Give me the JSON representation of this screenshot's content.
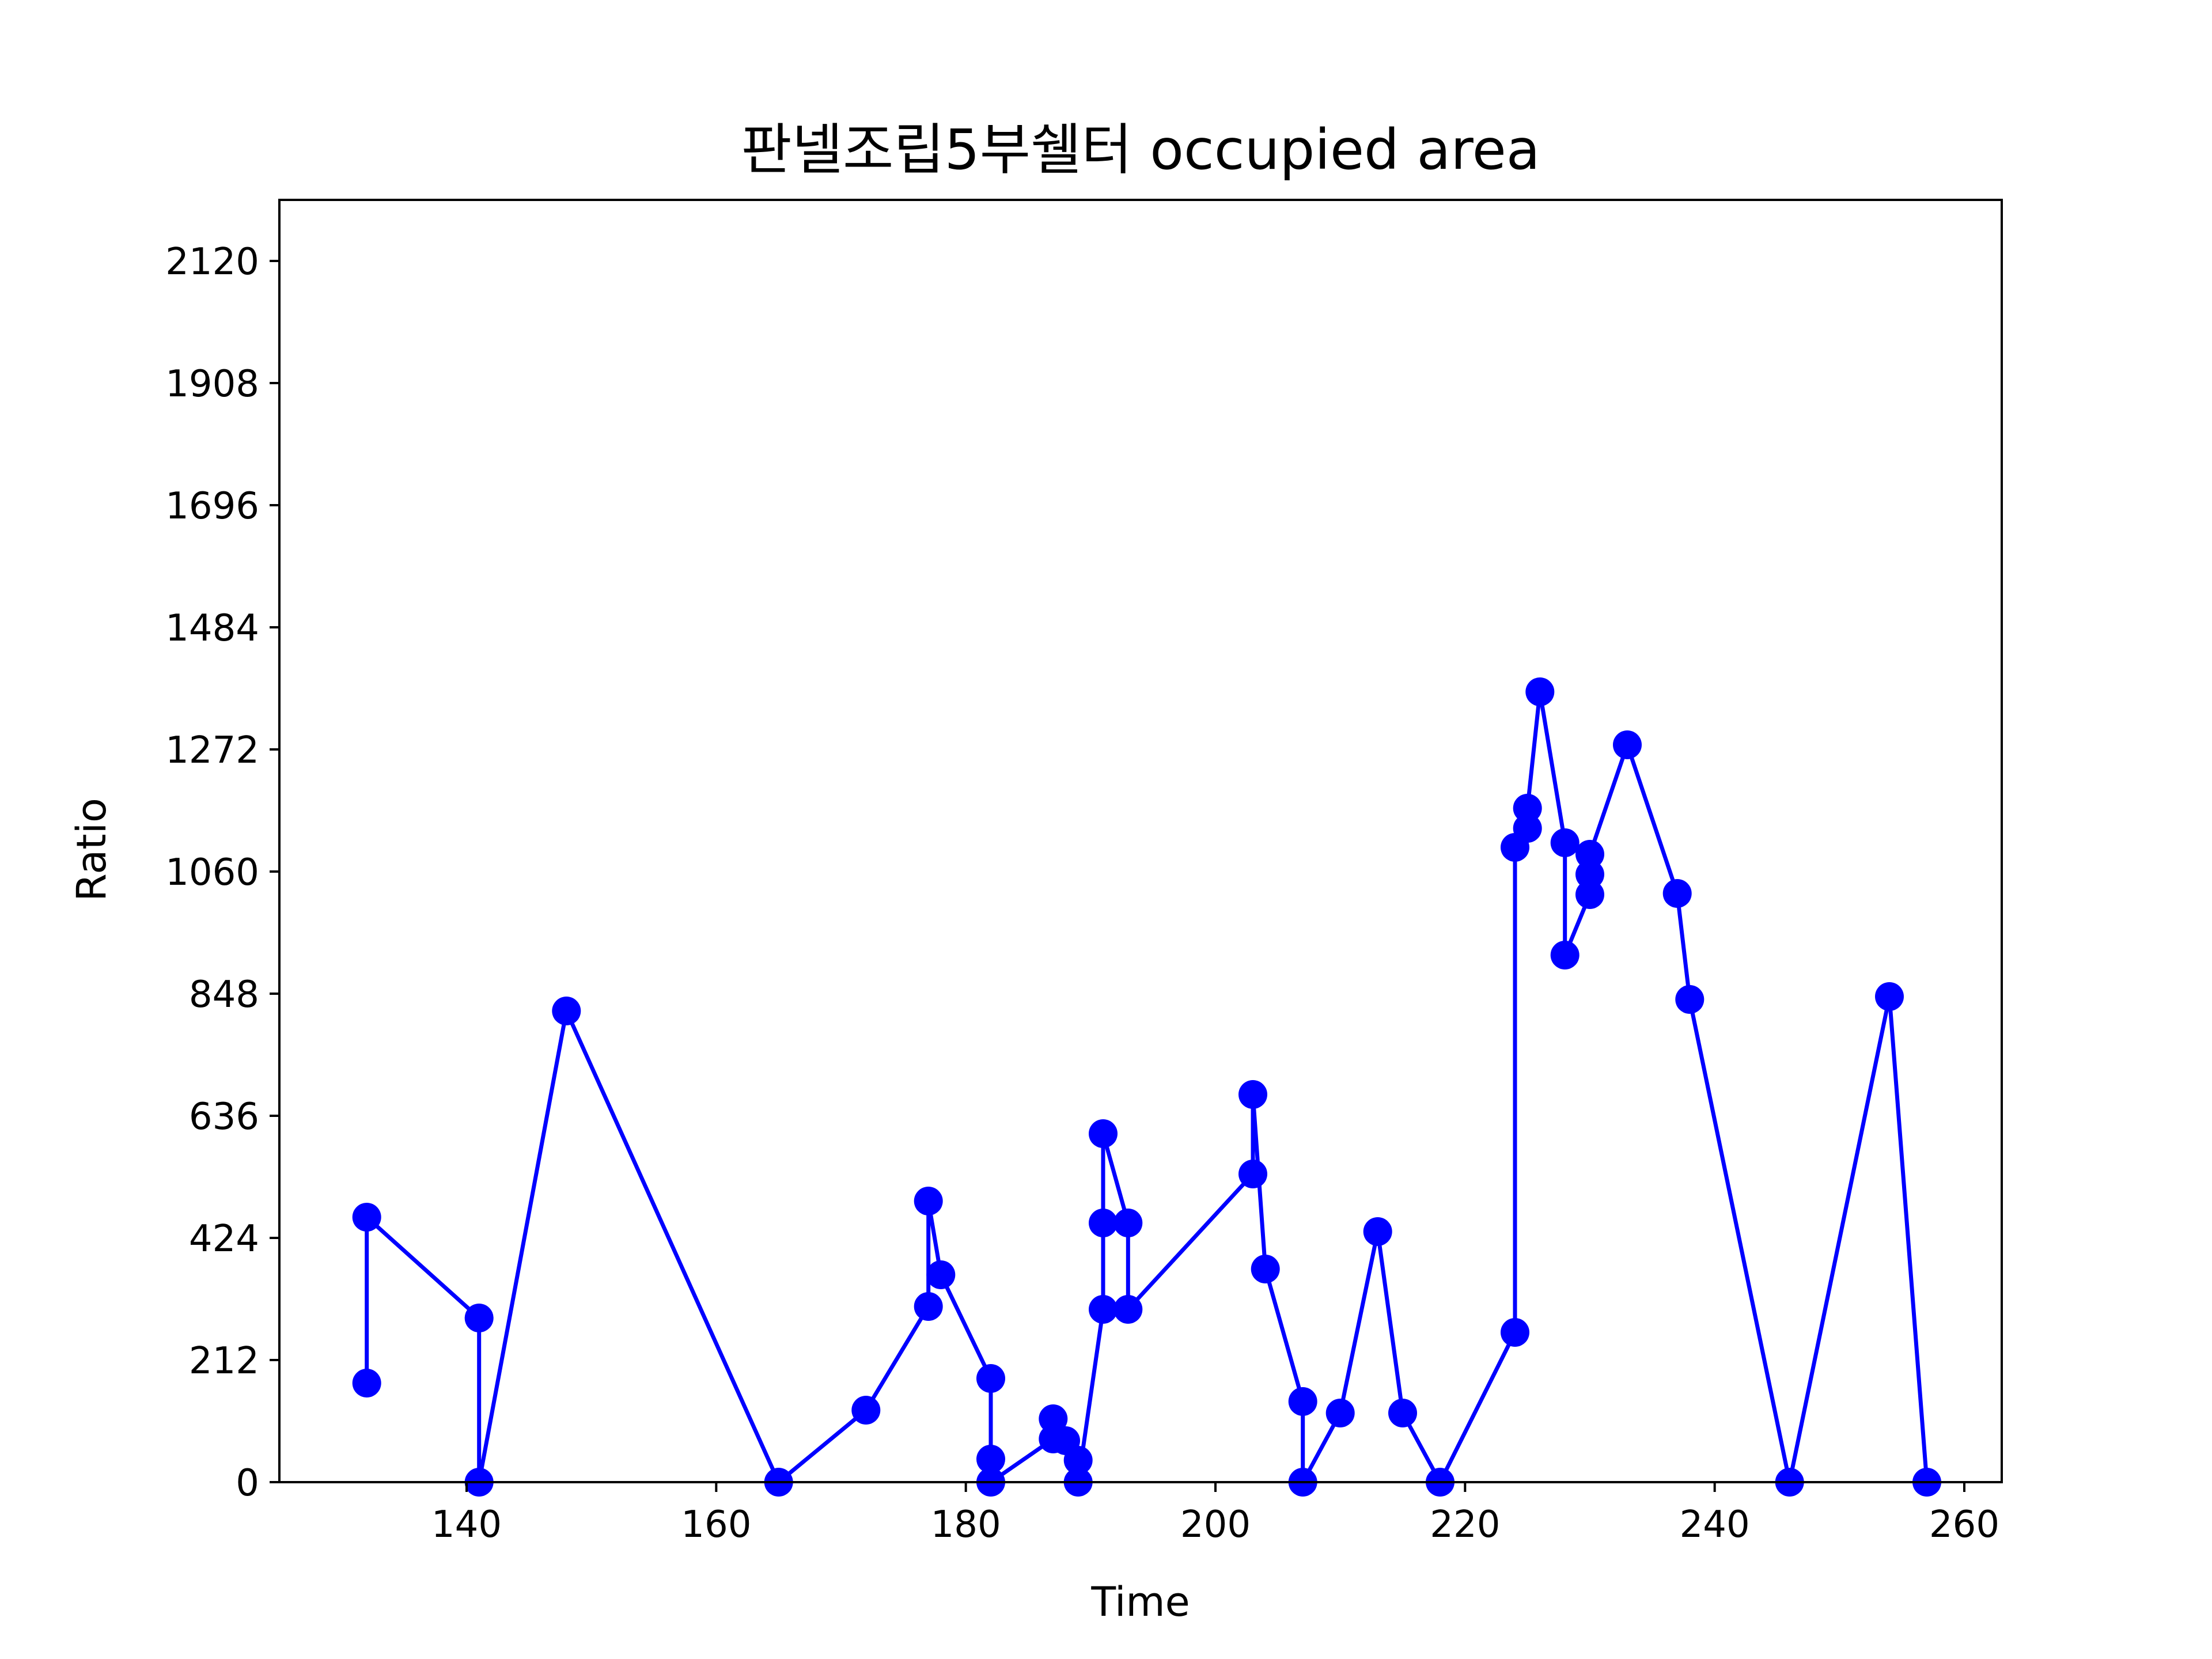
{
  "chart_data": {
    "type": "line",
    "title": "판넬조립5부쉘터 occupied area",
    "xlabel": "Time",
    "ylabel": "Ratio",
    "xlim": [
      125,
      263
    ],
    "ylim": [
      0,
      2226
    ],
    "xticks": [
      140,
      160,
      180,
      200,
      220,
      240,
      260
    ],
    "yticks": [
      0,
      212,
      424,
      636,
      848,
      1060,
      1272,
      1484,
      1696,
      1908,
      2120
    ],
    "grid": false,
    "legend": "none",
    "colors": {
      "series": "#0000ff",
      "axes": "#000000",
      "background": "#ffffff"
    },
    "series": [
      {
        "marker": "circle",
        "points": [
          [
            132,
            172
          ],
          [
            132,
            460
          ],
          [
            141,
            285
          ],
          [
            141,
            0
          ],
          [
            148,
            818
          ],
          [
            165,
            0
          ],
          [
            172,
            125
          ],
          [
            177,
            305
          ],
          [
            177,
            488
          ],
          [
            178,
            360
          ],
          [
            182,
            180
          ],
          [
            182,
            40
          ],
          [
            182,
            0
          ],
          [
            187,
            75
          ],
          [
            187,
            110
          ],
          [
            188,
            72
          ],
          [
            189,
            38
          ],
          [
            189,
            0
          ],
          [
            191,
            300
          ],
          [
            191,
            450
          ],
          [
            191,
            605
          ],
          [
            193,
            450
          ],
          [
            193,
            300
          ],
          [
            203,
            535
          ],
          [
            203,
            673
          ],
          [
            204,
            370
          ],
          [
            207,
            140
          ],
          [
            207,
            0
          ],
          [
            210,
            120
          ],
          [
            213,
            435
          ],
          [
            215,
            120
          ],
          [
            218,
            0
          ],
          [
            224,
            260
          ],
          [
            224,
            1102
          ],
          [
            225,
            1135
          ],
          [
            225,
            1170
          ],
          [
            226,
            1372
          ],
          [
            228,
            1110
          ],
          [
            228,
            915
          ],
          [
            230,
            1020
          ],
          [
            230,
            1055
          ],
          [
            230,
            1090
          ],
          [
            233,
            1280
          ],
          [
            237,
            1022
          ],
          [
            238,
            838
          ],
          [
            246,
            0
          ],
          [
            254,
            843
          ],
          [
            257,
            0
          ]
        ]
      }
    ]
  }
}
